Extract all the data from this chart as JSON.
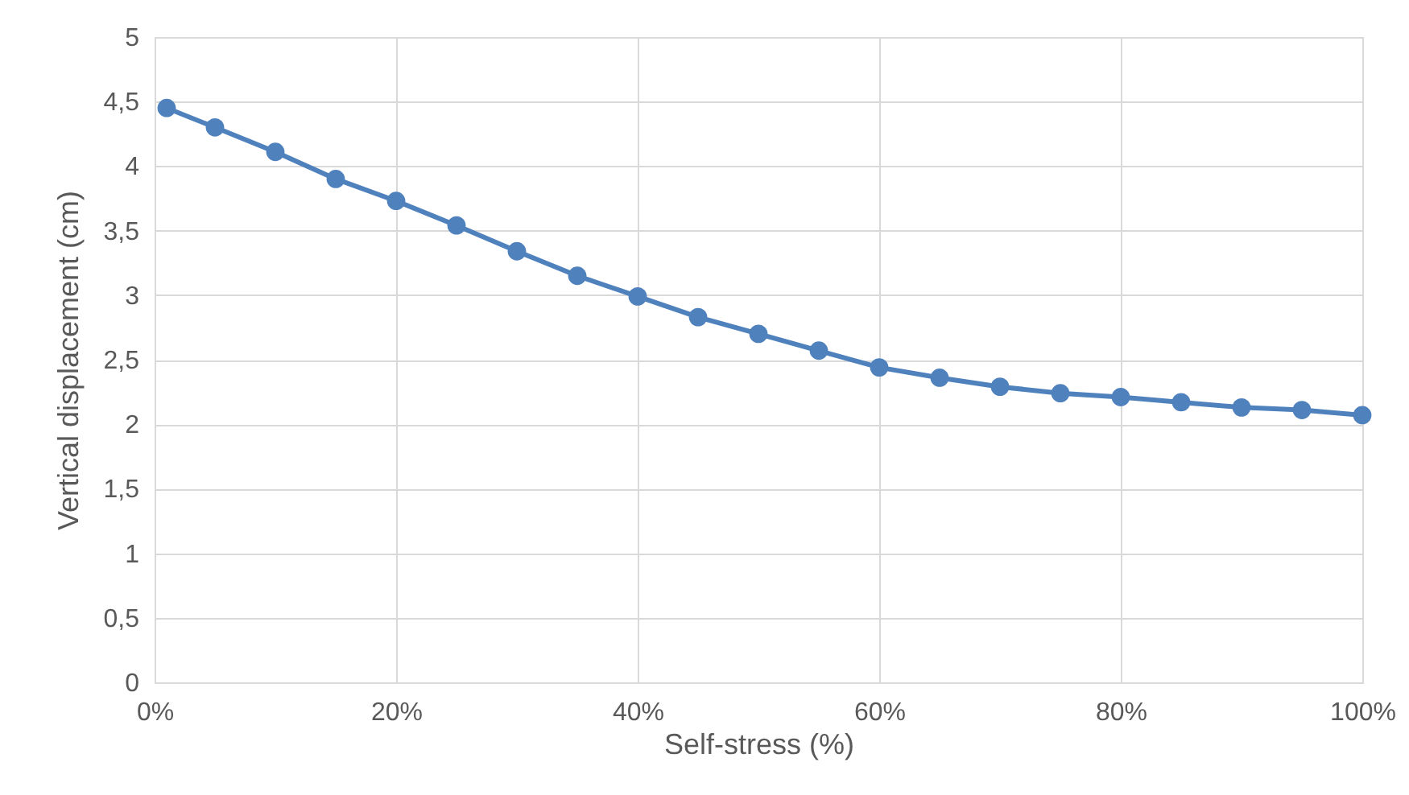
{
  "chart_data": {
    "type": "line",
    "xlabel": "Self-stress (%)",
    "ylabel": "Vertical displacement (cm)",
    "x": [
      1,
      5,
      10,
      15,
      20,
      25,
      30,
      35,
      40,
      45,
      50,
      55,
      60,
      65,
      70,
      75,
      80,
      85,
      90,
      95,
      100
    ],
    "series": [
      {
        "color": "#4f81bd",
        "values": [
          4.45,
          4.3,
          4.11,
          3.9,
          3.73,
          3.54,
          3.34,
          3.15,
          2.99,
          2.83,
          2.7,
          2.57,
          2.44,
          2.36,
          2.29,
          2.24,
          2.21,
          2.17,
          2.13,
          2.11,
          2.07
        ]
      }
    ],
    "xlim": [
      0,
      100
    ],
    "xticks": [
      {
        "value": 0,
        "label": "0%"
      },
      {
        "value": 20,
        "label": "20%"
      },
      {
        "value": 40,
        "label": "40%"
      },
      {
        "value": 60,
        "label": "60%"
      },
      {
        "value": 80,
        "label": "80%"
      },
      {
        "value": 100,
        "label": "100%"
      }
    ],
    "ylim": [
      0,
      5
    ],
    "yticks": [
      0,
      {
        "value": 0.5,
        "label": "0,5"
      },
      1,
      {
        "value": 1.5,
        "label": "1,5"
      },
      2,
      {
        "value": 2.5,
        "label": "2,5"
      },
      3,
      {
        "value": 3.5,
        "label": "3,5"
      },
      4,
      {
        "value": 4.5,
        "label": "4,5"
      },
      5
    ],
    "grid": true,
    "marker": "circle"
  }
}
